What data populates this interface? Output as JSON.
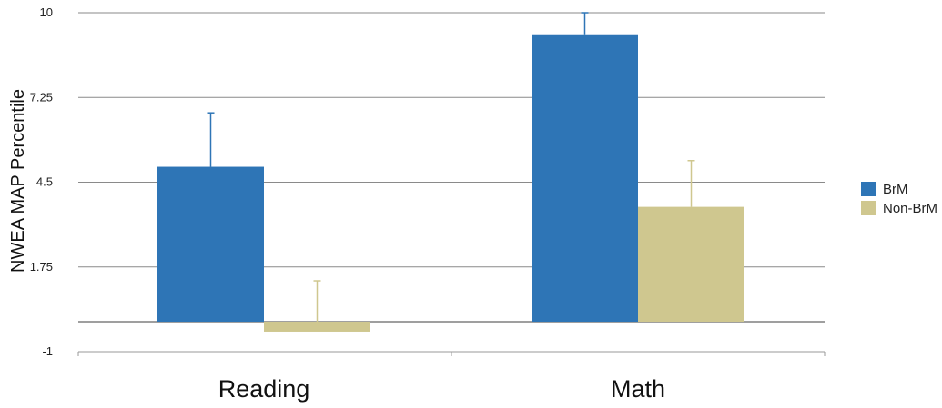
{
  "chart_data": {
    "type": "bar",
    "ylabel": "NWEA MAP Percentile",
    "categories": [
      "Reading",
      "Math"
    ],
    "ylim": [
      -1,
      10
    ],
    "y_ticks": [
      "10",
      "7.25",
      "4.5",
      "1.75",
      "-1"
    ],
    "y_tick_values": [
      10,
      7.25,
      4.5,
      1.75,
      -1
    ],
    "grid": true,
    "legend_position": "right",
    "series": [
      {
        "name": "BrM",
        "color": "#2E75B6",
        "values": [
          5.0,
          9.3
        ],
        "error_upper": [
          6.75,
          10.0
        ]
      },
      {
        "name": "Non-BrM",
        "color": "#CFC78F",
        "values": [
          -0.35,
          3.7
        ],
        "error_upper": [
          1.3,
          5.2
        ]
      }
    ]
  }
}
